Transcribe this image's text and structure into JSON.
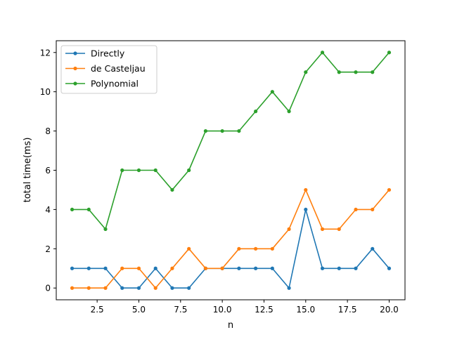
{
  "chart_data": {
    "type": "line",
    "title": "",
    "xlabel": "n",
    "ylabel": "total time(ms)",
    "xlim": [
      0.05,
      20.95
    ],
    "ylim": [
      -0.6,
      12.6
    ],
    "xticks": [
      2.5,
      5.0,
      7.5,
      10.0,
      12.5,
      15.0,
      17.5,
      20.0
    ],
    "xtick_labels": [
      "2.5",
      "5.0",
      "7.5",
      "10.0",
      "12.5",
      "15.0",
      "17.5",
      "20.0"
    ],
    "yticks": [
      0,
      2,
      4,
      6,
      8,
      10,
      12
    ],
    "ytick_labels": [
      "0",
      "2",
      "4",
      "6",
      "8",
      "10",
      "12"
    ],
    "grid": false,
    "legend_position": "top-left",
    "x": [
      1,
      2,
      3,
      4,
      5,
      6,
      7,
      8,
      9,
      10,
      11,
      12,
      13,
      14,
      15,
      16,
      17,
      18,
      19,
      20
    ],
    "series": [
      {
        "name": "Directly",
        "color": "#1f77b4",
        "values": [
          1,
          1,
          1,
          0,
          0,
          1,
          0,
          0,
          1,
          1,
          1,
          1,
          1,
          0,
          4,
          1,
          1,
          1,
          2,
          1
        ]
      },
      {
        "name": "de Casteljau",
        "color": "#ff7f0e",
        "values": [
          0,
          0,
          0,
          1,
          1,
          0,
          1,
          2,
          1,
          1,
          2,
          2,
          2,
          3,
          5,
          3,
          3,
          4,
          4,
          5
        ]
      },
      {
        "name": "Polynomial",
        "color": "#2ca02c",
        "values": [
          4,
          4,
          3,
          6,
          6,
          6,
          5,
          6,
          8,
          8,
          8,
          9,
          10,
          9,
          11,
          12,
          11,
          11,
          11,
          12
        ]
      }
    ]
  }
}
